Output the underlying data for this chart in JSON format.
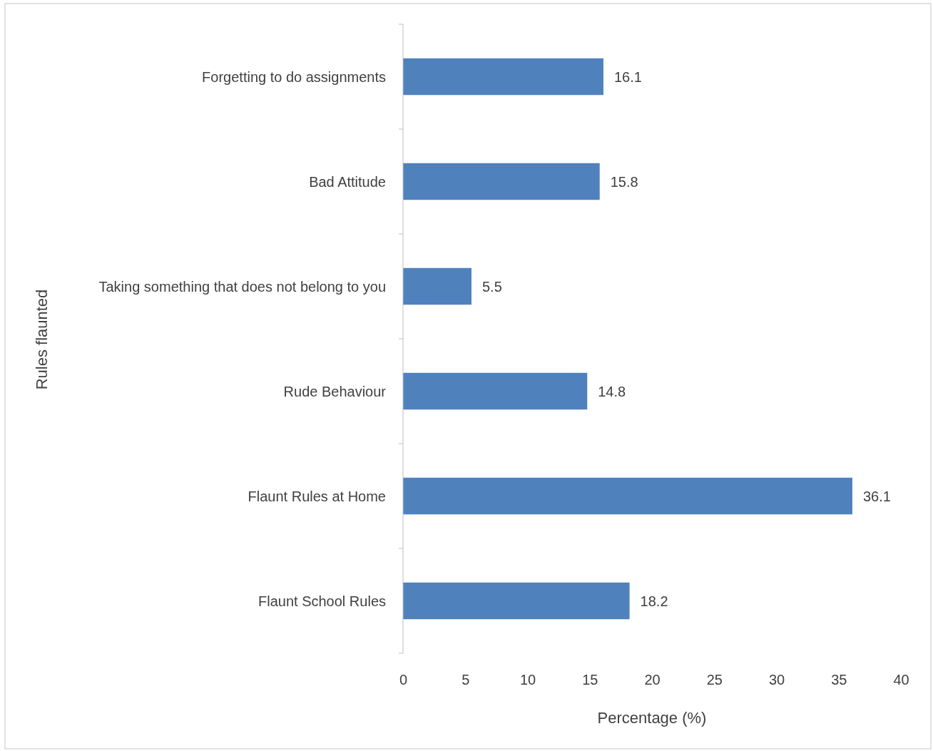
{
  "chart_data": {
    "type": "bar",
    "orientation": "horizontal",
    "xlabel": "Percentage (%)",
    "ylabel": "Rules flaunted",
    "categories": [
      "Forgetting to do assignments",
      "Bad Attitude",
      "Taking something that does not belong to you",
      "Rude Behaviour",
      "Flaunt Rules at Home",
      "Flaunt School Rules"
    ],
    "values": [
      16.1,
      15.8,
      5.5,
      14.8,
      36.1,
      18.2
    ],
    "color": "#4f81bd",
    "xlim": [
      0,
      40
    ],
    "xticks": [
      0,
      5,
      10,
      15,
      20,
      25,
      30,
      35,
      40
    ],
    "data_labels": true,
    "grid": false,
    "legend": false
  }
}
